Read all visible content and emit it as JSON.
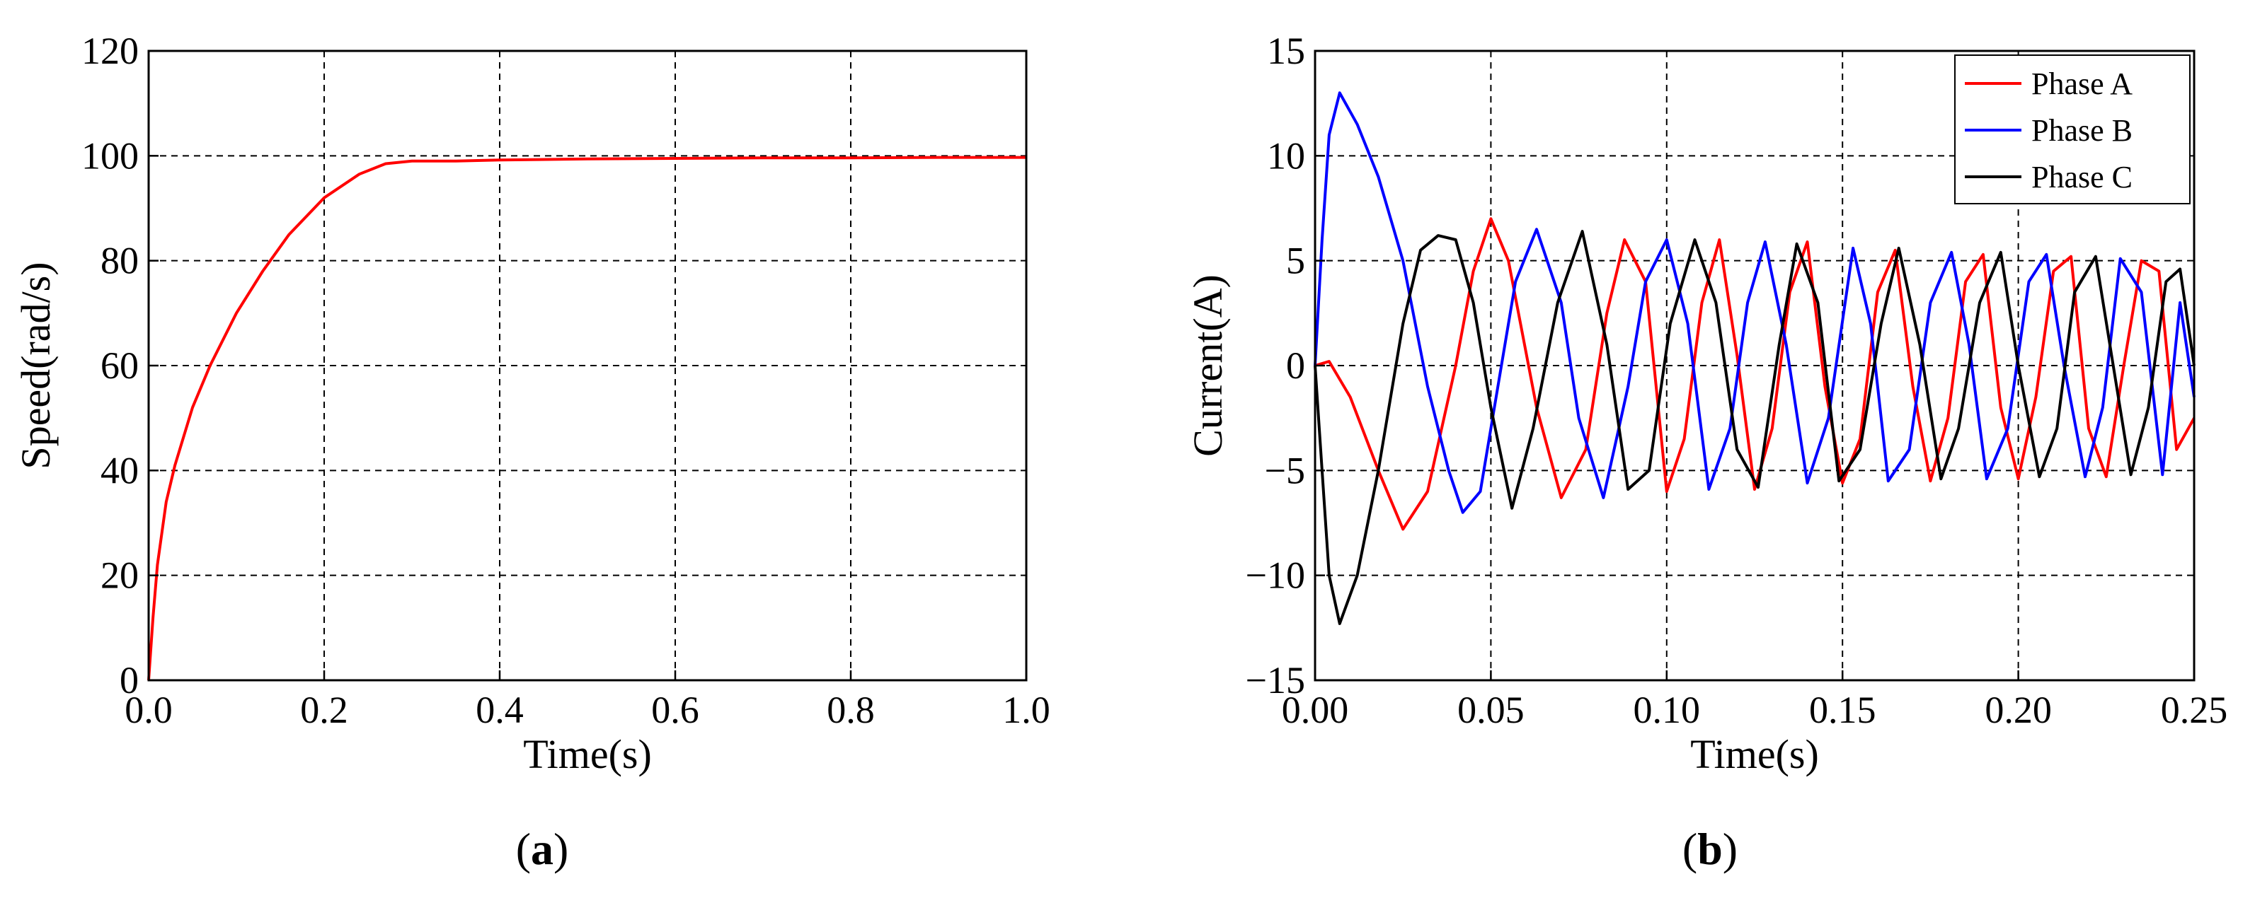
{
  "chart_data": [
    {
      "type": "line",
      "panel_label": "a",
      "xlabel": "Time(s)",
      "ylabel": "Speed(rad/s)",
      "xlim": [
        0,
        1.0
      ],
      "ylim": [
        0,
        120
      ],
      "xticks": [
        "0.0",
        "0.2",
        "0.4",
        "0.6",
        "0.8",
        "1.0"
      ],
      "yticks": [
        "0",
        "20",
        "40",
        "60",
        "80",
        "100",
        "120"
      ],
      "xtick_values": [
        0,
        0.2,
        0.4,
        0.6,
        0.8,
        1.0
      ],
      "ytick_values": [
        0,
        20,
        40,
        60,
        80,
        100,
        120
      ],
      "grid": true,
      "series": [
        {
          "color": "#ff0000",
          "x": [
            0,
            0.005,
            0.01,
            0.02,
            0.03,
            0.05,
            0.07,
            0.1,
            0.13,
            0.16,
            0.2,
            0.24,
            0.27,
            0.3,
            0.35,
            0.4,
            0.5,
            0.6,
            0.7,
            0.8,
            0.9,
            1.0
          ],
          "y": [
            0,
            12,
            22,
            34,
            41,
            52,
            60,
            70,
            78,
            85,
            92,
            96.5,
            98.5,
            99,
            99,
            99.2,
            99.4,
            99.5,
            99.6,
            99.6,
            99.7,
            99.7
          ]
        }
      ]
    },
    {
      "type": "line",
      "panel_label": "b",
      "xlabel": "Time(s)",
      "ylabel": "Current(A)",
      "xlim": [
        0,
        0.25
      ],
      "ylim": [
        -15,
        15
      ],
      "xticks": [
        "0.00",
        "0.05",
        "0.10",
        "0.15",
        "0.20",
        "0.25"
      ],
      "yticks": [
        "−15",
        "−10",
        "−5",
        "0",
        "5",
        "10",
        "15"
      ],
      "xtick_values": [
        0,
        0.05,
        0.1,
        0.15,
        0.2,
        0.25
      ],
      "ytick_values": [
        -15,
        -10,
        -5,
        0,
        5,
        10,
        15
      ],
      "grid": true,
      "legend_position": "top-right",
      "series": [
        {
          "name": "Phase A",
          "color": "#ff0000",
          "x": [
            0,
            0.004,
            0.01,
            0.018,
            0.025,
            0.032,
            0.04,
            0.045,
            0.05,
            0.055,
            0.063,
            0.07,
            0.077,
            0.083,
            0.088,
            0.094,
            0.1,
            0.105,
            0.11,
            0.115,
            0.12,
            0.125,
            0.13,
            0.135,
            0.14,
            0.145,
            0.15,
            0.155,
            0.16,
            0.165,
            0.17,
            0.175,
            0.18,
            0.185,
            0.19,
            0.195,
            0.2,
            0.205,
            0.21,
            0.215,
            0.22,
            0.225,
            0.23,
            0.235,
            0.24,
            0.245,
            0.25
          ],
          "y": [
            0,
            0.2,
            -1.5,
            -5,
            -7.8,
            -6,
            0,
            4.5,
            7,
            5,
            -2,
            -6.3,
            -4,
            2.5,
            6,
            4,
            -6,
            -3.5,
            3,
            6,
            0.5,
            -5.9,
            -3,
            3.5,
            5.9,
            -1,
            -5.6,
            -3.5,
            3.5,
            5.5,
            -1,
            -5.5,
            -2.5,
            4,
            5.3,
            -2,
            -5.4,
            -1.5,
            4.5,
            5.2,
            -3,
            -5.3,
            0,
            5,
            4.5,
            -4,
            -2.5
          ]
        },
        {
          "name": "Phase B",
          "color": "#0000ff",
          "x": [
            0,
            0.002,
            0.004,
            0.007,
            0.012,
            0.018,
            0.025,
            0.032,
            0.038,
            0.042,
            0.047,
            0.052,
            0.057,
            0.063,
            0.07,
            0.075,
            0.082,
            0.089,
            0.094,
            0.1,
            0.106,
            0.112,
            0.118,
            0.123,
            0.128,
            0.134,
            0.14,
            0.146,
            0.153,
            0.158,
            0.163,
            0.169,
            0.175,
            0.181,
            0.186,
            0.191,
            0.197,
            0.203,
            0.208,
            0.213,
            0.219,
            0.224,
            0.229,
            0.235,
            0.241,
            0.246,
            0.25
          ],
          "y": [
            0,
            6,
            11,
            13,
            11.5,
            9,
            5,
            -1,
            -5,
            -7,
            -6,
            -1,
            4,
            6.5,
            3,
            -2.5,
            -6.3,
            -1,
            4,
            6,
            2,
            -5.9,
            -3,
            3,
            5.9,
            1,
            -5.6,
            -2.5,
            5.6,
            2,
            -5.5,
            -4,
            3,
            5.4,
            1,
            -5.4,
            -3,
            4,
            5.3,
            0,
            -5.3,
            -2,
            5.1,
            3.5,
            -5.2,
            3,
            -1.5
          ]
        },
        {
          "name": "Phase C",
          "color": "#000000",
          "x": [
            0,
            0.002,
            0.004,
            0.007,
            0.012,
            0.018,
            0.025,
            0.03,
            0.035,
            0.04,
            0.045,
            0.05,
            0.056,
            0.062,
            0.069,
            0.076,
            0.083,
            0.089,
            0.095,
            0.101,
            0.108,
            0.114,
            0.12,
            0.126,
            0.132,
            0.137,
            0.143,
            0.149,
            0.155,
            0.161,
            0.166,
            0.172,
            0.178,
            0.183,
            0.189,
            0.195,
            0.2,
            0.206,
            0.211,
            0.216,
            0.222,
            0.227,
            0.232,
            0.237,
            0.242,
            0.246,
            0.25
          ],
          "y": [
            0,
            -5,
            -10,
            -12.3,
            -10,
            -5,
            2,
            5.5,
            6.2,
            6,
            3,
            -2,
            -6.8,
            -3,
            3,
            6.4,
            1,
            -5.9,
            -5,
            2,
            6,
            3,
            -4,
            -5.8,
            1,
            5.8,
            3,
            -5.5,
            -4,
            2,
            5.6,
            1,
            -5.4,
            -3,
            3,
            5.4,
            0,
            -5.3,
            -3,
            3.5,
            5.2,
            0,
            -5.2,
            -2,
            4,
            4.6,
            0
          ]
        }
      ]
    }
  ]
}
